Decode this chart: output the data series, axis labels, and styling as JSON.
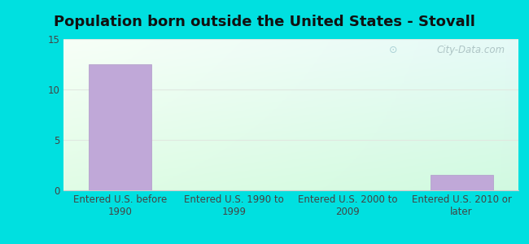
{
  "title": "Population born outside the United States - Stovall",
  "categories": [
    "Entered U.S. before\n1990",
    "Entered U.S. 1990 to\n1999",
    "Entered U.S. 2000 to\n2009",
    "Entered U.S. 2010 or\nlater"
  ],
  "values": [
    12.5,
    0,
    0,
    1.5
  ],
  "bar_color": "#c0a8d8",
  "bar_edge_color": "#b09ac8",
  "ylim": [
    0,
    15
  ],
  "yticks": [
    0,
    5,
    10,
    15
  ],
  "outer_bg": "#00e0e0",
  "title_fontsize": 13,
  "tick_fontsize": 8.5,
  "watermark_text": "City-Data.com",
  "watermark_color": "#a8bfc0",
  "grid_color": "#e0e8e0",
  "bg_topleft": [
    0.97,
    1.0,
    0.97
  ],
  "bg_bottomright": [
    0.82,
    0.98,
    0.88
  ]
}
